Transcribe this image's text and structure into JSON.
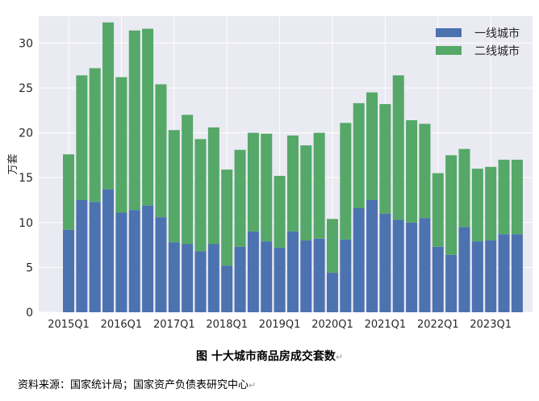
{
  "chart_data": {
    "type": "bar",
    "stacked": true,
    "categories": [
      "2015Q1",
      "2015Q2",
      "2015Q3",
      "2015Q4",
      "2016Q1",
      "2016Q2",
      "2016Q3",
      "2016Q4",
      "2017Q1",
      "2017Q2",
      "2017Q3",
      "2017Q4",
      "2018Q1",
      "2018Q2",
      "2018Q3",
      "2018Q4",
      "2019Q1",
      "2019Q2",
      "2019Q3",
      "2019Q4",
      "2020Q1",
      "2020Q2",
      "2020Q3",
      "2020Q4",
      "2021Q1",
      "2021Q2",
      "2021Q3",
      "2021Q4",
      "2022Q1",
      "2022Q2",
      "2022Q3",
      "2022Q4",
      "2023Q1",
      "2023Q2",
      "2023Q3"
    ],
    "x_tick_labels": [
      "2015Q1",
      "2016Q1",
      "2017Q1",
      "2018Q1",
      "2019Q1",
      "2020Q1",
      "2021Q1",
      "2022Q1",
      "2023Q1"
    ],
    "series": [
      {
        "name": "一线城市",
        "color": "#4c72b0",
        "values": [
          9.2,
          12.5,
          12.3,
          13.7,
          11.1,
          11.4,
          11.9,
          10.6,
          7.8,
          7.6,
          6.8,
          7.6,
          5.2,
          7.3,
          9.0,
          7.9,
          7.2,
          9.0,
          8.0,
          8.2,
          4.4,
          8.1,
          11.6,
          12.5,
          11.0,
          10.3,
          10.0,
          10.5,
          7.3,
          6.4,
          9.5,
          7.9,
          8.0,
          8.7,
          8.7
        ]
      },
      {
        "name": "二线城市",
        "color": "#55a868",
        "values": [
          8.4,
          13.9,
          14.9,
          18.6,
          15.1,
          20.0,
          19.7,
          14.8,
          12.5,
          14.4,
          12.5,
          13.0,
          10.7,
          10.8,
          11.0,
          12.0,
          8.0,
          10.7,
          10.6,
          11.8,
          6.0,
          13.0,
          11.7,
          12.0,
          12.2,
          16.1,
          11.4,
          10.5,
          8.2,
          11.1,
          8.7,
          8.1,
          8.2,
          8.3,
          8.3
        ]
      }
    ],
    "ylabel": "万套",
    "ylim": [
      0,
      33
    ],
    "yticks": [
      0,
      5,
      10,
      15,
      20,
      25,
      30
    ],
    "grid": true,
    "legend_position": "top-right"
  },
  "caption": "图  十大城市商品房成交套数",
  "source": "资料来源：国家统计局；国家资产负债表研究中心",
  "return_mark": "↵"
}
